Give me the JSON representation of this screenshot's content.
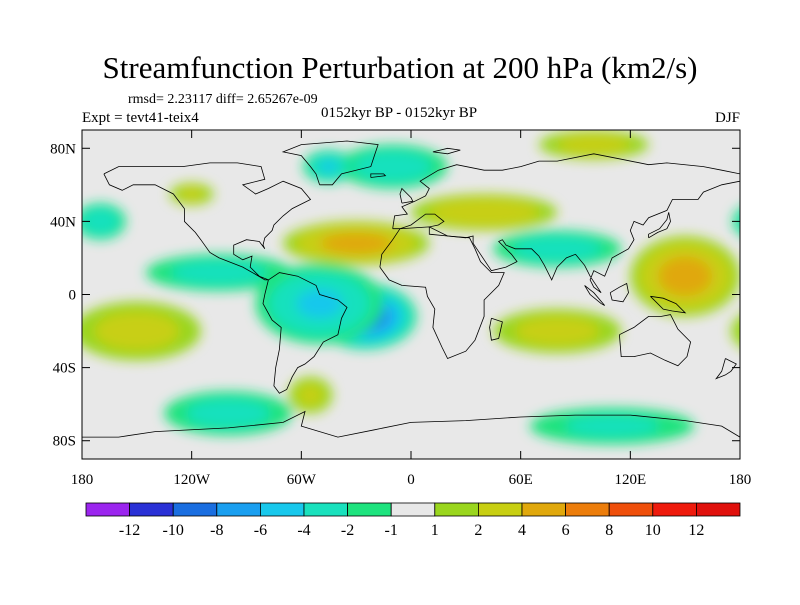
{
  "header": {
    "title": "Streamfunction Perturbation at 200 hPa (km2/s)",
    "stats": "rmsd= 2.23117 diff= 2.65267e-09",
    "experiment": "Expt = tevt41-teix4",
    "period": "0152kyr BP - 0152kyr BP",
    "season": "DJF"
  },
  "chart_data": {
    "type": "heatmap",
    "title": "Streamfunction Perturbation at 200 hPa (km2/s)",
    "xlabel": "",
    "ylabel": "",
    "xlim": [
      -180,
      180
    ],
    "ylim": [
      -90,
      90
    ],
    "x_ticks": [
      {
        "value": -180,
        "label": "180"
      },
      {
        "value": -120,
        "label": "120W"
      },
      {
        "value": -60,
        "label": "60W"
      },
      {
        "value": 0,
        "label": "0"
      },
      {
        "value": 60,
        "label": "60E"
      },
      {
        "value": 120,
        "label": "120E"
      },
      {
        "value": 180,
        "label": "180"
      }
    ],
    "y_ticks": [
      {
        "value": 80,
        "label": "80N"
      },
      {
        "value": 40,
        "label": "40N"
      },
      {
        "value": 0,
        "label": "0"
      },
      {
        "value": -40,
        "label": "40S"
      },
      {
        "value": -80,
        "label": "80S"
      }
    ],
    "colorbar": {
      "levels": [
        -12,
        -10,
        -8,
        -6,
        -4,
        -2,
        -1,
        1,
        2,
        4,
        6,
        8,
        10,
        12
      ],
      "labels": [
        "-12",
        "-10",
        "-8",
        "-6",
        "-4",
        "-2",
        "-1",
        "1",
        "2",
        "4",
        "6",
        "8",
        "10",
        "12"
      ],
      "colors": [
        "#9b25ee",
        "#2a31d6",
        "#1a6ee0",
        "#1a9ff0",
        "#18c8ec",
        "#19e1bd",
        "#1ee37e",
        "#e8e8e8",
        "#9ad61e",
        "#c8cf12",
        "#e0a80c",
        "#ec7d0b",
        "#ef4f0b",
        "#ee1a0c",
        "#e0100c"
      ]
    },
    "fields": [
      {
        "name": "low-south-america-atlantic",
        "lon": -25,
        "lat": -12,
        "value": -9.5,
        "rx": 28,
        "ry": 18
      },
      {
        "name": "low-tropical-atlantic-ext",
        "lon": -50,
        "lat": -5,
        "value": -4,
        "rx": 35,
        "ry": 22
      },
      {
        "name": "low-north-atlantic-pole",
        "lon": -10,
        "lat": 70,
        "value": -3,
        "rx": 30,
        "ry": 12
      },
      {
        "name": "low-greenland",
        "lon": -45,
        "lat": 70,
        "value": -4,
        "rx": 14,
        "ry": 9
      },
      {
        "name": "low-north-pacific",
        "lon": -170,
        "lat": 40,
        "value": -3.5,
        "rx": 14,
        "ry": 10
      },
      {
        "name": "low-east-pacific-eq",
        "lon": -105,
        "lat": 12,
        "value": -2.5,
        "rx": 40,
        "ry": 10
      },
      {
        "name": "low-asia-mid",
        "lon": 80,
        "lat": 25,
        "value": -2.8,
        "rx": 35,
        "ry": 10
      },
      {
        "name": "low-south-pacific",
        "lon": -100,
        "lat": -65,
        "value": -2.5,
        "rx": 35,
        "ry": 12
      },
      {
        "name": "low-south-indian",
        "lon": 110,
        "lat": -72,
        "value": -2,
        "rx": 45,
        "ry": 10
      },
      {
        "name": "high-north-africa",
        "lon": -30,
        "lat": 28,
        "value": 5,
        "rx": 40,
        "ry": 12
      },
      {
        "name": "high-europe",
        "lon": 40,
        "lat": 45,
        "value": 3.5,
        "rx": 40,
        "ry": 10
      },
      {
        "name": "high-west-pacific",
        "lon": 150,
        "lat": 10,
        "value": 5,
        "rx": 30,
        "ry": 22
      },
      {
        "name": "high-central-pacific",
        "lon": -150,
        "lat": -20,
        "value": 2.5,
        "rx": 35,
        "ry": 16
      },
      {
        "name": "high-south-indian",
        "lon": 80,
        "lat": -20,
        "value": 2.5,
        "rx": 35,
        "ry": 12
      },
      {
        "name": "high-north-america-west",
        "lon": -120,
        "lat": 55,
        "value": 2,
        "rx": 12,
        "ry": 6
      },
      {
        "name": "high-barents",
        "lon": 100,
        "lat": 82,
        "value": 2.5,
        "rx": 30,
        "ry": 8
      },
      {
        "name": "high-south-america-low",
        "lon": -55,
        "lat": -55,
        "value": 2,
        "rx": 12,
        "ry": 10
      }
    ]
  }
}
